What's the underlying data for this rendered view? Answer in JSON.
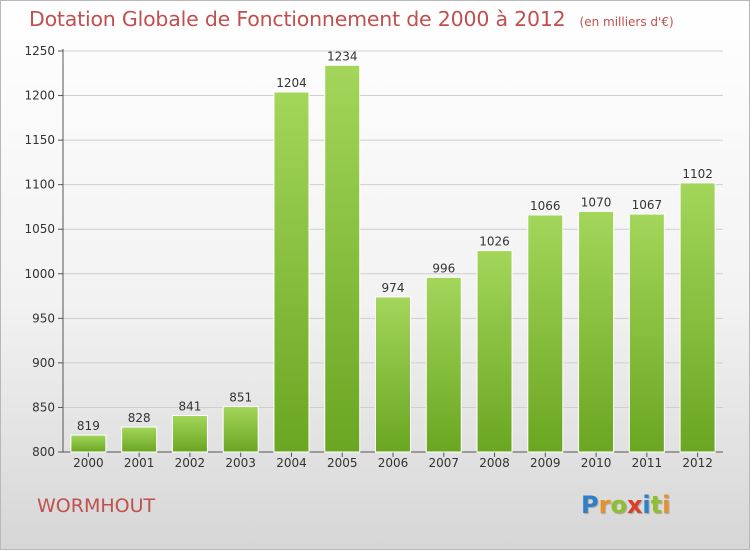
{
  "header": {
    "title": "Dotation Globale de Fonctionnement de 2000 à 2012",
    "subtitle": "(en milliers d'€)"
  },
  "footer": {
    "commune": "WORMHOUT",
    "logo_letters": [
      "P",
      "r",
      "o",
      "x",
      "i",
      "t",
      "i"
    ],
    "logo_colors": [
      "#2e7fc8",
      "#e8912a",
      "#8dbf2e",
      "#d9402a",
      "#2e7fc8",
      "#8dbf2e",
      "#e8912a"
    ]
  },
  "chart_data": {
    "type": "bar",
    "title": "Dotation Globale de Fonctionnement de 2000 à 2012",
    "subtitle": "(en milliers d'€)",
    "categories": [
      "2000",
      "2001",
      "2002",
      "2003",
      "2004",
      "2005",
      "2006",
      "2007",
      "2008",
      "2009",
      "2010",
      "2011",
      "2012"
    ],
    "values": [
      819,
      828,
      841,
      851,
      1204,
      1234,
      974,
      996,
      1026,
      1066,
      1070,
      1067,
      1102
    ],
    "ylim": [
      800,
      1250
    ],
    "yticks": [
      800,
      850,
      900,
      950,
      1000,
      1050,
      1100,
      1150,
      1200,
      1250
    ],
    "grid": true,
    "bar_color": "#8cc63f",
    "bar_color_dark": "#6aa622"
  }
}
